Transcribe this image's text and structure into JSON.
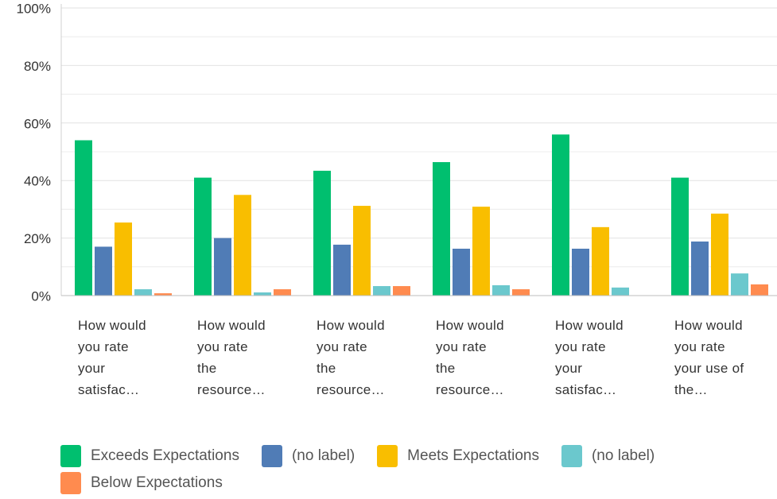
{
  "chart_data": {
    "type": "bar",
    "categories": [
      "How would you rate your satisfac…",
      "How would you rate the resource…",
      "How would you rate the resource…",
      "How would you rate the resource…",
      "How would you rate your satisfac…",
      "How would you rate your use of the…"
    ],
    "series": [
      {
        "name": "Exceeds Expectations",
        "color": "#00bf6f",
        "values": [
          54,
          41,
          43.4,
          46.4,
          56,
          41
        ]
      },
      {
        "name": "(no label)",
        "color": "#507cb6",
        "values": [
          17,
          20,
          17.7,
          16.3,
          16.3,
          18.8
        ]
      },
      {
        "name": "Meets Expectations",
        "color": "#f9be00",
        "values": [
          25.4,
          35,
          31.2,
          30.9,
          23.8,
          28.5
        ]
      },
      {
        "name": "(no label)",
        "color": "#6bc8cd",
        "values": [
          2.2,
          1.1,
          3.3,
          3.6,
          2.8,
          7.7
        ]
      },
      {
        "name": "Below Expectations",
        "color": "#ff8b4f",
        "values": [
          0.8,
          2.2,
          3.3,
          2.2,
          0,
          3.9
        ]
      }
    ],
    "ylim": [
      0,
      100
    ],
    "yticks": [
      {
        "value": 0,
        "label": "0%"
      },
      {
        "value": 20,
        "label": "20%"
      },
      {
        "value": 40,
        "label": "40%"
      },
      {
        "value": 60,
        "label": "60%"
      },
      {
        "value": 80,
        "label": "80%"
      },
      {
        "value": 100,
        "label": "100%"
      }
    ],
    "minor_yticks": [
      10,
      30,
      50,
      70,
      90
    ],
    "grid": true
  }
}
